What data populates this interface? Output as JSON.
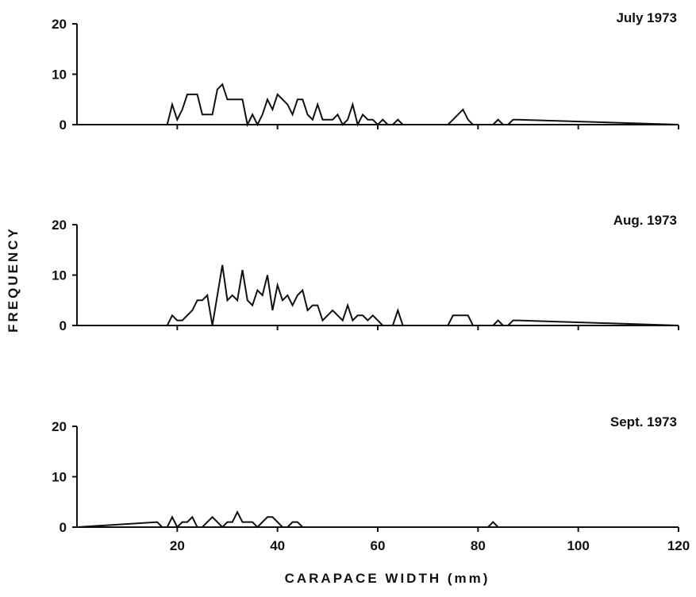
{
  "chart_data": [
    {
      "type": "line",
      "title": "July 1973",
      "xlim": [
        0,
        120
      ],
      "ylim": [
        0,
        20
      ],
      "yticks": [
        0,
        10,
        20
      ],
      "xticks": [
        20,
        40,
        60,
        80,
        100,
        120
      ],
      "x": [
        18,
        19,
        20,
        21,
        22,
        23,
        24,
        25,
        26,
        27,
        28,
        29,
        30,
        31,
        32,
        33,
        34,
        35,
        36,
        37,
        38,
        39,
        40,
        41,
        42,
        43,
        44,
        45,
        46,
        47,
        48,
        49,
        50,
        51,
        52,
        53,
        54,
        55,
        56,
        57,
        58,
        59,
        60,
        61,
        62,
        63,
        64,
        65,
        66,
        67,
        68,
        69,
        70,
        71,
        72,
        73,
        74,
        75,
        76,
        77,
        78,
        79,
        80,
        81,
        82,
        83,
        84,
        85,
        86,
        87,
        88
      ],
      "series": [
        {
          "values": [
            0,
            4,
            1,
            3,
            6,
            6,
            6,
            2,
            2,
            2,
            7,
            8,
            5,
            5,
            5,
            5,
            0,
            2,
            0,
            2,
            5,
            3,
            6,
            5,
            4,
            2,
            5,
            5,
            2,
            1,
            4,
            1,
            1,
            1,
            2,
            0,
            1,
            4,
            0,
            2,
            1,
            1,
            0,
            1,
            0,
            0,
            1,
            0,
            0,
            0,
            0,
            0,
            0,
            0,
            0,
            0,
            0,
            1,
            2,
            3,
            1,
            0,
            0,
            0,
            0,
            0,
            1,
            0,
            0,
            1,
            1
          ]
        }
      ]
    },
    {
      "type": "line",
      "title": "Aug. 1973",
      "xlim": [
        0,
        120
      ],
      "ylim": [
        0,
        20
      ],
      "yticks": [
        0,
        10,
        20
      ],
      "xticks": [
        20,
        40,
        60,
        80,
        100,
        120
      ],
      "x": [
        18,
        19,
        20,
        21,
        22,
        23,
        24,
        25,
        26,
        27,
        28,
        29,
        30,
        31,
        32,
        33,
        34,
        35,
        36,
        37,
        38,
        39,
        40,
        41,
        42,
        43,
        44,
        45,
        46,
        47,
        48,
        49,
        50,
        51,
        52,
        53,
        54,
        55,
        56,
        57,
        58,
        59,
        60,
        61,
        62,
        63,
        64,
        65,
        66,
        67,
        68,
        69,
        70,
        71,
        72,
        73,
        74,
        75,
        76,
        77,
        78,
        79,
        80,
        81,
        82,
        83,
        84,
        85,
        86,
        87,
        88
      ],
      "series": [
        {
          "values": [
            0,
            2,
            1,
            1,
            2,
            3,
            5,
            5,
            6,
            0,
            6,
            12,
            5,
            6,
            5,
            11,
            5,
            4,
            7,
            6,
            10,
            3,
            8,
            5,
            6,
            4,
            6,
            7,
            3,
            4,
            4,
            1,
            2,
            3,
            2,
            1,
            4,
            1,
            2,
            2,
            1,
            2,
            1,
            0,
            0,
            0,
            3,
            0,
            0,
            0,
            0,
            0,
            0,
            0,
            0,
            0,
            0,
            2,
            2,
            2,
            2,
            0,
            0,
            0,
            0,
            0,
            1,
            0,
            0,
            1,
            1
          ]
        }
      ]
    },
    {
      "type": "line",
      "title": "Sept. 1973",
      "xlim": [
        0,
        120
      ],
      "ylim": [
        0,
        20
      ],
      "yticks": [
        0,
        10,
        20
      ],
      "xticks": [
        20,
        40,
        60,
        80,
        100,
        120
      ],
      "x": [
        16,
        17,
        18,
        19,
        20,
        21,
        22,
        23,
        24,
        25,
        26,
        27,
        28,
        29,
        30,
        31,
        32,
        33,
        34,
        35,
        36,
        37,
        38,
        39,
        40,
        41,
        42,
        43,
        44,
        45,
        82,
        83,
        84
      ],
      "series": [
        {
          "values": [
            1,
            0,
            0,
            2,
            0,
            1,
            1,
            2,
            0,
            0,
            1,
            2,
            1,
            0,
            1,
            1,
            3,
            1,
            1,
            1,
            0,
            1,
            2,
            2,
            1,
            0,
            0,
            1,
            1,
            0,
            0,
            1,
            0
          ]
        }
      ]
    }
  ],
  "axis": {
    "xlabel": "CARAPACE WIDTH (mm)",
    "ylabel": "FREQUENCY"
  }
}
